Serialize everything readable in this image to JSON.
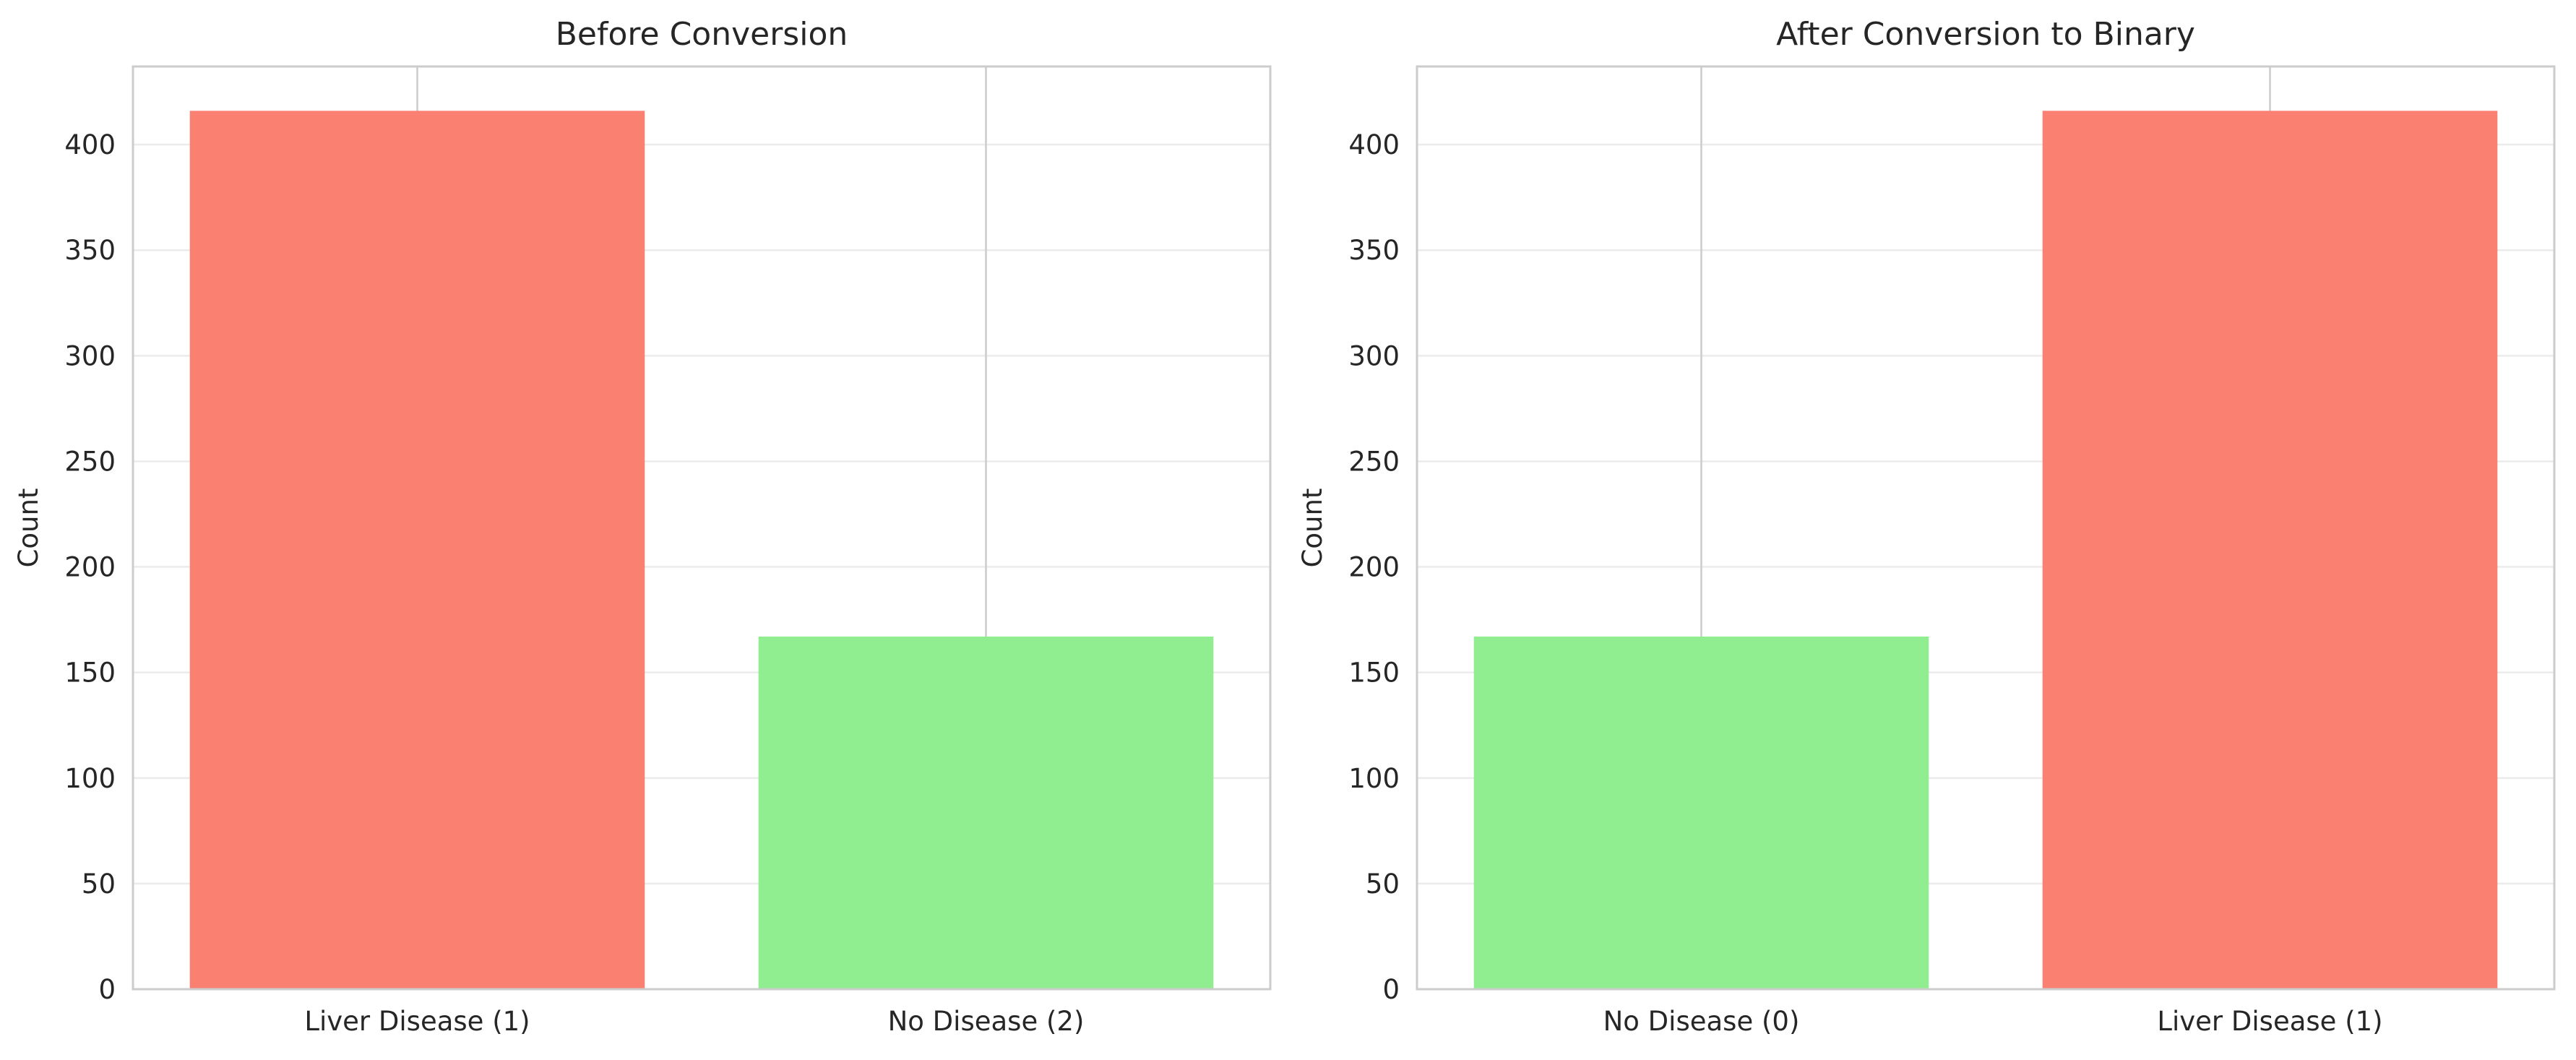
{
  "chart_data": [
    {
      "type": "bar",
      "title": "Before Conversion",
      "xlabel": "",
      "ylabel": "Count",
      "categories": [
        "Liver Disease (1)",
        "No Disease (2)"
      ],
      "values": [
        416,
        167
      ],
      "colors": [
        "#fa8072",
        "#90ee90"
      ],
      "ylim": [
        0,
        437
      ],
      "yticks": [
        0,
        50,
        100,
        150,
        200,
        250,
        300,
        350,
        400
      ],
      "grid": true
    },
    {
      "type": "bar",
      "title": "After Conversion to Binary",
      "xlabel": "",
      "ylabel": "Count",
      "categories": [
        "No Disease (0)",
        "Liver Disease (1)"
      ],
      "values": [
        167,
        416
      ],
      "colors": [
        "#90ee90",
        "#fa8072"
      ],
      "ylim": [
        0,
        437
      ],
      "yticks": [
        0,
        50,
        100,
        150,
        200,
        250,
        300,
        350,
        400
      ],
      "grid": true
    }
  ]
}
